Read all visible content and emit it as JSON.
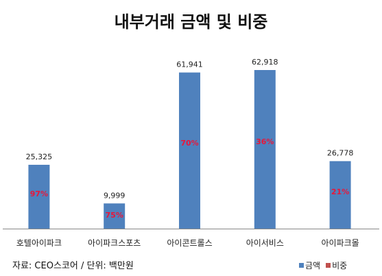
{
  "chart_data": {
    "type": "bar",
    "title": "내부거래 금액 및 비중",
    "categories": [
      "호텔아이파크",
      "아이파크스포츠",
      "아이콘트롤스",
      "아이서비스",
      "아이파크몰"
    ],
    "series": [
      {
        "name": "금액",
        "values": [
          25325,
          9999,
          61941,
          62918,
          26778
        ],
        "labels": [
          "25,325",
          "9,999",
          "61,941",
          "62,918",
          "26,778"
        ],
        "color": "#4f81bd"
      },
      {
        "name": "비중",
        "values": [
          97,
          75,
          70,
          36,
          21
        ],
        "labels": [
          "97%",
          "75%",
          "70%",
          "36%",
          "21%"
        ],
        "color": "#c0504d"
      }
    ],
    "ylim": [
      0,
      70000
    ],
    "grid": false,
    "legend": "bottom-right",
    "note": "자료: CEO스코어 / 단위: 백만원"
  }
}
